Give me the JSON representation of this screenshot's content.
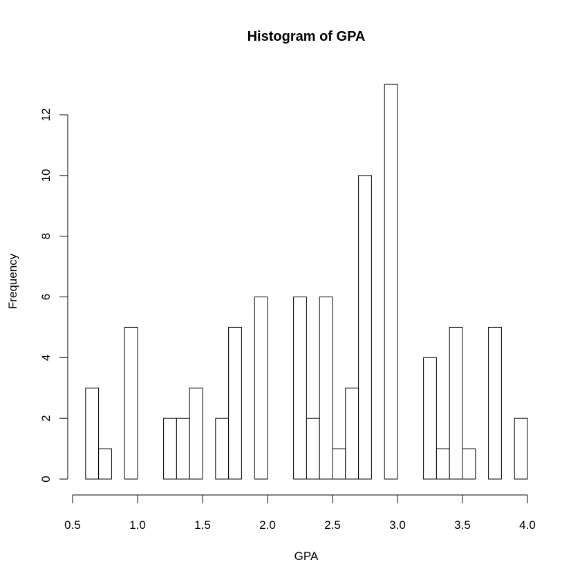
{
  "chart_data": {
    "type": "bar",
    "title": "Histogram of GPA",
    "xlabel": "GPA",
    "ylabel": "Frequency",
    "bin_width": 0.1,
    "bins": [
      {
        "start": 0.6,
        "end": 0.7,
        "count": 3
      },
      {
        "start": 0.7,
        "end": 0.8,
        "count": 1
      },
      {
        "start": 0.8,
        "end": 0.9,
        "count": 0
      },
      {
        "start": 0.9,
        "end": 1.0,
        "count": 5
      },
      {
        "start": 1.0,
        "end": 1.1,
        "count": 0
      },
      {
        "start": 1.1,
        "end": 1.2,
        "count": 0
      },
      {
        "start": 1.2,
        "end": 1.3,
        "count": 2
      },
      {
        "start": 1.3,
        "end": 1.4,
        "count": 2
      },
      {
        "start": 1.4,
        "end": 1.5,
        "count": 3
      },
      {
        "start": 1.5,
        "end": 1.6,
        "count": 0
      },
      {
        "start": 1.6,
        "end": 1.7,
        "count": 2
      },
      {
        "start": 1.7,
        "end": 1.8,
        "count": 5
      },
      {
        "start": 1.8,
        "end": 1.9,
        "count": 0
      },
      {
        "start": 1.9,
        "end": 2.0,
        "count": 6
      },
      {
        "start": 2.0,
        "end": 2.1,
        "count": 0
      },
      {
        "start": 2.1,
        "end": 2.2,
        "count": 0
      },
      {
        "start": 2.2,
        "end": 2.3,
        "count": 6
      },
      {
        "start": 2.3,
        "end": 2.4,
        "count": 2
      },
      {
        "start": 2.4,
        "end": 2.5,
        "count": 6
      },
      {
        "start": 2.5,
        "end": 2.6,
        "count": 1
      },
      {
        "start": 2.6,
        "end": 2.7,
        "count": 3
      },
      {
        "start": 2.7,
        "end": 2.8,
        "count": 10
      },
      {
        "start": 2.8,
        "end": 2.9,
        "count": 0
      },
      {
        "start": 2.9,
        "end": 3.0,
        "count": 13
      },
      {
        "start": 3.0,
        "end": 3.1,
        "count": 0
      },
      {
        "start": 3.1,
        "end": 3.2,
        "count": 0
      },
      {
        "start": 3.2,
        "end": 3.3,
        "count": 4
      },
      {
        "start": 3.3,
        "end": 3.4,
        "count": 1
      },
      {
        "start": 3.4,
        "end": 3.5,
        "count": 5
      },
      {
        "start": 3.5,
        "end": 3.6,
        "count": 1
      },
      {
        "start": 3.6,
        "end": 3.7,
        "count": 0
      },
      {
        "start": 3.7,
        "end": 3.8,
        "count": 5
      },
      {
        "start": 3.8,
        "end": 3.9,
        "count": 0
      },
      {
        "start": 3.9,
        "end": 4.0,
        "count": 2
      }
    ],
    "xlim": [
      0.5,
      4.0
    ],
    "ylim": [
      0,
      12
    ],
    "x_ticks": [
      "0.5",
      "1.0",
      "1.5",
      "2.0",
      "2.5",
      "3.0",
      "3.5",
      "4.0"
    ],
    "y_ticks": [
      "0",
      "2",
      "4",
      "6",
      "8",
      "10",
      "12"
    ],
    "grid": false,
    "bar_fill": "#ffffff",
    "bar_stroke": "#000000"
  }
}
